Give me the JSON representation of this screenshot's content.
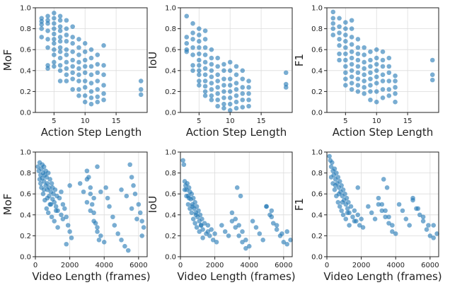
{
  "chart_data": [
    {
      "type": "scatter",
      "xlabel": "Action Step Length",
      "ylabel": "MoF",
      "xlim": [
        2,
        20
      ],
      "ylim": [
        0,
        1.0
      ],
      "xticks": [
        5,
        10,
        15
      ],
      "xtick_labels": [
        "5",
        "10",
        "15"
      ],
      "yticks": [
        0,
        0.2,
        0.4,
        0.6,
        0.8,
        1.0
      ],
      "ytick_labels": [
        "0.0",
        "0.2",
        "0.4",
        "0.6",
        "0.8",
        "1.0"
      ],
      "grid": true,
      "x": [
        3,
        3,
        3,
        3,
        3,
        4,
        4,
        4,
        4,
        4,
        4,
        4,
        4,
        5,
        5,
        5,
        5,
        5,
        5,
        5,
        5,
        5,
        5,
        5,
        6,
        6,
        6,
        6,
        6,
        6,
        6,
        6,
        6,
        6,
        6,
        6,
        7,
        7,
        7,
        7,
        7,
        7,
        7,
        7,
        7,
        7,
        8,
        8,
        8,
        8,
        8,
        8,
        8,
        8,
        8,
        9,
        9,
        9,
        9,
        9,
        9,
        9,
        9,
        9,
        10,
        10,
        10,
        10,
        10,
        10,
        10,
        10,
        10,
        11,
        11,
        11,
        11,
        11,
        11,
        11,
        11,
        12,
        12,
        12,
        12,
        12,
        12,
        12,
        13,
        13,
        13,
        13,
        13,
        13,
        19,
        19,
        19
      ],
      "y": [
        0.9,
        0.87,
        0.84,
        0.8,
        0.72,
        0.92,
        0.88,
        0.85,
        0.78,
        0.7,
        0.62,
        0.45,
        0.42,
        0.95,
        0.9,
        0.85,
        0.8,
        0.75,
        0.7,
        0.66,
        0.6,
        0.55,
        0.48,
        0.44,
        0.92,
        0.88,
        0.82,
        0.78,
        0.72,
        0.68,
        0.62,
        0.58,
        0.52,
        0.45,
        0.4,
        0.3,
        0.88,
        0.8,
        0.74,
        0.68,
        0.6,
        0.55,
        0.48,
        0.42,
        0.36,
        0.3,
        0.82,
        0.72,
        0.66,
        0.58,
        0.5,
        0.44,
        0.38,
        0.32,
        0.22,
        0.7,
        0.62,
        0.55,
        0.48,
        0.42,
        0.36,
        0.3,
        0.22,
        0.16,
        0.66,
        0.58,
        0.5,
        0.44,
        0.38,
        0.3,
        0.24,
        0.16,
        0.1,
        0.6,
        0.52,
        0.44,
        0.36,
        0.28,
        0.2,
        0.14,
        0.08,
        0.55,
        0.46,
        0.38,
        0.3,
        0.22,
        0.15,
        0.1,
        0.64,
        0.45,
        0.36,
        0.26,
        0.18,
        0.12,
        0.3,
        0.22,
        0.17
      ]
    },
    {
      "type": "scatter",
      "xlabel": "Action Step Length",
      "ylabel": "IoU",
      "xlim": [
        2,
        20
      ],
      "ylim": [
        0,
        1.0
      ],
      "xticks": [
        5,
        10,
        15
      ],
      "xtick_labels": [
        "5",
        "10",
        "15"
      ],
      "yticks": [
        0,
        0.2,
        0.4,
        0.6,
        0.8,
        1.0
      ],
      "ytick_labels": [
        "0.0",
        "0.2",
        "0.4",
        "0.6",
        "0.8",
        "1.0"
      ],
      "grid": true,
      "x": [
        3,
        3,
        3,
        3,
        3,
        4,
        4,
        4,
        4,
        4,
        4,
        4,
        5,
        5,
        5,
        5,
        5,
        5,
        5,
        5,
        5,
        5,
        5,
        6,
        6,
        6,
        6,
        6,
        6,
        6,
        6,
        6,
        6,
        6,
        7,
        7,
        7,
        7,
        7,
        7,
        7,
        7,
        7,
        8,
        8,
        8,
        8,
        8,
        8,
        8,
        8,
        9,
        9,
        9,
        9,
        9,
        9,
        9,
        9,
        10,
        10,
        10,
        10,
        10,
        10,
        10,
        10,
        11,
        11,
        11,
        11,
        11,
        11,
        11,
        12,
        12,
        12,
        12,
        12,
        12,
        13,
        13,
        13,
        13,
        13,
        19,
        19,
        19
      ],
      "y": [
        0.92,
        0.72,
        0.66,
        0.6,
        0.58,
        0.85,
        0.76,
        0.7,
        0.62,
        0.55,
        0.45,
        0.4,
        0.8,
        0.74,
        0.68,
        0.62,
        0.56,
        0.5,
        0.45,
        0.4,
        0.36,
        0.3,
        0.26,
        0.78,
        0.7,
        0.62,
        0.55,
        0.48,
        0.42,
        0.36,
        0.3,
        0.25,
        0.2,
        0.16,
        0.6,
        0.52,
        0.46,
        0.4,
        0.34,
        0.28,
        0.22,
        0.16,
        0.12,
        0.52,
        0.44,
        0.36,
        0.3,
        0.24,
        0.18,
        0.12,
        0.06,
        0.46,
        0.4,
        0.32,
        0.26,
        0.2,
        0.14,
        0.08,
        0.04,
        0.48,
        0.4,
        0.32,
        0.26,
        0.2,
        0.14,
        0.08,
        0.02,
        0.44,
        0.36,
        0.28,
        0.22,
        0.16,
        0.1,
        0.04,
        0.4,
        0.32,
        0.24,
        0.18,
        0.12,
        0.05,
        0.3,
        0.24,
        0.18,
        0.12,
        0.06,
        0.38,
        0.27,
        0.24
      ]
    },
    {
      "type": "scatter",
      "xlabel": "Action Step Length",
      "ylabel": "F1",
      "xlim": [
        2,
        20
      ],
      "ylim": [
        0,
        1.0
      ],
      "xticks": [
        5,
        10,
        15
      ],
      "xtick_labels": [
        "5",
        "10",
        "15"
      ],
      "yticks": [
        0,
        0.2,
        0.4,
        0.6,
        0.8,
        1.0
      ],
      "ytick_labels": [
        "0.0",
        "0.2",
        "0.4",
        "0.6",
        "0.8",
        "1.0"
      ],
      "grid": true,
      "x": [
        3,
        3,
        3,
        3,
        3,
        4,
        4,
        4,
        4,
        4,
        4,
        4,
        5,
        5,
        5,
        5,
        5,
        5,
        5,
        5,
        5,
        5,
        5,
        6,
        6,
        6,
        6,
        6,
        6,
        6,
        6,
        6,
        6,
        6,
        7,
        7,
        7,
        7,
        7,
        7,
        7,
        7,
        7,
        8,
        8,
        8,
        8,
        8,
        8,
        8,
        8,
        9,
        9,
        9,
        9,
        9,
        9,
        9,
        9,
        10,
        10,
        10,
        10,
        10,
        10,
        10,
        10,
        11,
        11,
        11,
        11,
        11,
        11,
        11,
        12,
        12,
        12,
        12,
        12,
        12,
        13,
        13,
        13,
        13,
        13,
        19,
        19,
        19
      ],
      "y": [
        0.96,
        0.9,
        0.85,
        0.8,
        0.74,
        0.9,
        0.82,
        0.76,
        0.7,
        0.64,
        0.56,
        0.5,
        0.86,
        0.8,
        0.74,
        0.68,
        0.62,
        0.56,
        0.5,
        0.44,
        0.38,
        0.32,
        0.26,
        0.88,
        0.8,
        0.72,
        0.65,
        0.58,
        0.52,
        0.46,
        0.4,
        0.34,
        0.28,
        0.22,
        0.7,
        0.62,
        0.56,
        0.5,
        0.44,
        0.38,
        0.32,
        0.26,
        0.2,
        0.62,
        0.55,
        0.48,
        0.42,
        0.36,
        0.3,
        0.24,
        0.18,
        0.58,
        0.5,
        0.44,
        0.38,
        0.32,
        0.26,
        0.2,
        0.12,
        0.6,
        0.52,
        0.46,
        0.4,
        0.34,
        0.28,
        0.2,
        0.1,
        0.58,
        0.5,
        0.44,
        0.36,
        0.3,
        0.22,
        0.14,
        0.52,
        0.44,
        0.38,
        0.3,
        0.22,
        0.16,
        0.35,
        0.3,
        0.24,
        0.18,
        0.1,
        0.5,
        0.36,
        0.31
      ]
    },
    {
      "type": "scatter",
      "xlabel": "Video Length (frames)",
      "ylabel": "MoF",
      "xlim": [
        0,
        6500
      ],
      "ylim": [
        0,
        1.0
      ],
      "xticks": [
        0,
        2000,
        4000,
        6000
      ],
      "xtick_labels": [
        "0",
        "2000",
        "4000",
        "6000"
      ],
      "yticks": [
        0,
        0.2,
        0.4,
        0.6,
        0.8,
        1.0
      ],
      "ytick_labels": [
        "0.0",
        "0.2",
        "0.4",
        "0.6",
        "0.8",
        "1.0"
      ],
      "grid": true,
      "x": [
        150,
        200,
        250,
        300,
        300,
        350,
        400,
        400,
        450,
        500,
        500,
        550,
        600,
        600,
        650,
        700,
        700,
        750,
        800,
        800,
        850,
        900,
        950,
        1000,
        1000,
        1050,
        1100,
        1150,
        1200,
        1250,
        1300,
        1400,
        1500,
        1500,
        1600,
        1700,
        1800,
        1900,
        2000,
        2100,
        250,
        350,
        450,
        550,
        650,
        750,
        850,
        950,
        1100,
        1300,
        500,
        700,
        900,
        1200,
        1600,
        1800,
        2000,
        3000,
        3100,
        3200,
        3300,
        3400,
        3500,
        3600,
        3700,
        3000,
        3200,
        3400,
        3600,
        3800,
        4000,
        4100,
        4200,
        4300,
        4500,
        4600,
        4800,
        5000,
        5200,
        5400,
        5500,
        5600,
        5700,
        5800,
        6000,
        6100,
        6200,
        6300,
        5000,
        5300,
        5600,
        5900,
        6200,
        2600,
        2800,
        3000,
        3200,
        3400,
        3600,
        3800
      ],
      "y": [
        0.86,
        0.82,
        0.9,
        0.78,
        0.7,
        0.84,
        0.88,
        0.75,
        0.8,
        0.86,
        0.72,
        0.78,
        0.68,
        0.82,
        0.76,
        0.7,
        0.64,
        0.8,
        0.66,
        0.58,
        0.74,
        0.62,
        0.7,
        0.66,
        0.55,
        0.6,
        0.52,
        0.64,
        0.48,
        0.58,
        0.44,
        0.56,
        0.62,
        0.4,
        0.5,
        0.46,
        0.38,
        0.3,
        0.24,
        0.18,
        0.74,
        0.66,
        0.6,
        0.54,
        0.46,
        0.42,
        0.5,
        0.38,
        0.34,
        0.28,
        0.64,
        0.56,
        0.5,
        0.44,
        0.36,
        0.12,
        0.68,
        0.82,
        0.76,
        0.6,
        0.5,
        0.42,
        0.32,
        0.24,
        0.16,
        0.52,
        0.44,
        0.34,
        0.28,
        0.2,
        0.14,
        0.66,
        0.56,
        0.48,
        0.38,
        0.3,
        0.22,
        0.16,
        0.1,
        0.06,
        0.88,
        0.76,
        0.68,
        0.6,
        0.5,
        0.42,
        0.34,
        0.28,
        0.64,
        0.58,
        0.46,
        0.36,
        0.2,
        0.7,
        0.62,
        0.74,
        0.66,
        0.56,
        0.86,
        0.62
      ]
    },
    {
      "type": "scatter",
      "xlabel": "Video Length (frames)",
      "ylabel": "IoU",
      "xlim": [
        0,
        6500
      ],
      "ylim": [
        0,
        1.0
      ],
      "xticks": [
        0,
        2000,
        4000,
        6000
      ],
      "xtick_labels": [
        "0",
        "2000",
        "4000",
        "6000"
      ],
      "yticks": [
        0,
        0.2,
        0.4,
        0.6,
        0.8,
        1.0
      ],
      "ytick_labels": [
        "0.0",
        "0.2",
        "0.4",
        "0.6",
        "0.8",
        "1.0"
      ],
      "grid": true,
      "x": [
        150,
        200,
        250,
        300,
        350,
        400,
        450,
        500,
        550,
        600,
        650,
        700,
        750,
        800,
        850,
        900,
        950,
        1000,
        1050,
        1100,
        1150,
        1200,
        1250,
        1300,
        1400,
        1500,
        1600,
        1700,
        1800,
        1900,
        2000,
        2100,
        250,
        350,
        450,
        550,
        650,
        750,
        850,
        950,
        1100,
        1300,
        500,
        700,
        900,
        1200,
        1600,
        2400,
        2600,
        2800,
        3000,
        3200,
        3400,
        3600,
        3800,
        3000,
        3200,
        3400,
        3600,
        3800,
        4000,
        4200,
        4400,
        4600,
        4800,
        5000,
        5200,
        5400,
        5600,
        5800,
        6000,
        6200,
        6400,
        5000,
        5300,
        5600,
        5900,
        6200,
        3300,
        3500,
        5300
      ],
      "y": [
        0.92,
        0.88,
        0.72,
        0.68,
        0.64,
        0.7,
        0.58,
        0.66,
        0.62,
        0.55,
        0.6,
        0.5,
        0.56,
        0.46,
        0.52,
        0.42,
        0.48,
        0.38,
        0.44,
        0.34,
        0.4,
        0.3,
        0.36,
        0.26,
        0.32,
        0.22,
        0.3,
        0.2,
        0.26,
        0.16,
        0.22,
        0.14,
        0.64,
        0.58,
        0.5,
        0.46,
        0.42,
        0.36,
        0.32,
        0.28,
        0.24,
        0.18,
        0.56,
        0.48,
        0.4,
        0.3,
        0.24,
        0.3,
        0.24,
        0.2,
        0.34,
        0.28,
        0.2,
        0.14,
        0.08,
        0.42,
        0.36,
        0.3,
        0.24,
        0.16,
        0.1,
        0.34,
        0.28,
        0.22,
        0.16,
        0.48,
        0.4,
        0.32,
        0.26,
        0.2,
        0.14,
        0.24,
        0.16,
        0.48,
        0.38,
        0.3,
        0.22,
        0.12,
        0.66,
        0.58,
        0.44
      ]
    },
    {
      "type": "scatter",
      "xlabel": "Video Length (frames)",
      "ylabel": "F1",
      "xlim": [
        0,
        6500
      ],
      "ylim": [
        0,
        1.0
      ],
      "xticks": [
        0,
        2000,
        4000,
        6000
      ],
      "xtick_labels": [
        "0",
        "2000",
        "4000",
        "6000"
      ],
      "yticks": [
        0,
        0.2,
        0.4,
        0.6,
        0.8,
        1.0
      ],
      "ytick_labels": [
        "0.0",
        "0.2",
        "0.4",
        "0.6",
        "0.8",
        "1.0"
      ],
      "grid": true,
      "x": [
        150,
        200,
        250,
        300,
        350,
        400,
        450,
        500,
        550,
        600,
        650,
        700,
        750,
        800,
        850,
        900,
        950,
        1000,
        1050,
        1100,
        1150,
        1200,
        1250,
        1300,
        1400,
        1500,
        1600,
        1700,
        1800,
        1900,
        2000,
        2100,
        250,
        350,
        450,
        550,
        650,
        750,
        850,
        950,
        1100,
        1300,
        500,
        700,
        900,
        1200,
        1600,
        2400,
        2600,
        2800,
        3000,
        3200,
        3400,
        3600,
        3800,
        3000,
        3200,
        3400,
        3600,
        3800,
        4000,
        4200,
        4400,
        4600,
        4800,
        5000,
        5200,
        5400,
        5600,
        5800,
        6000,
        6200,
        6400,
        5000,
        5300,
        5600,
        5900,
        6200,
        3300,
        3500,
        1800
      ],
      "y": [
        0.96,
        0.92,
        0.86,
        0.9,
        0.82,
        0.78,
        0.84,
        0.74,
        0.8,
        0.7,
        0.76,
        0.66,
        0.72,
        0.62,
        0.68,
        0.58,
        0.64,
        0.54,
        0.6,
        0.5,
        0.56,
        0.46,
        0.52,
        0.42,
        0.48,
        0.38,
        0.44,
        0.34,
        0.4,
        0.3,
        0.36,
        0.28,
        0.76,
        0.7,
        0.64,
        0.58,
        0.52,
        0.48,
        0.44,
        0.4,
        0.36,
        0.3,
        0.68,
        0.6,
        0.52,
        0.42,
        0.34,
        0.48,
        0.42,
        0.36,
        0.5,
        0.44,
        0.38,
        0.32,
        0.24,
        0.56,
        0.5,
        0.44,
        0.38,
        0.3,
        0.22,
        0.5,
        0.44,
        0.36,
        0.3,
        0.54,
        0.46,
        0.4,
        0.34,
        0.26,
        0.2,
        0.3,
        0.22,
        0.56,
        0.46,
        0.38,
        0.3,
        0.18,
        0.74,
        0.66,
        0.66
      ]
    }
  ]
}
